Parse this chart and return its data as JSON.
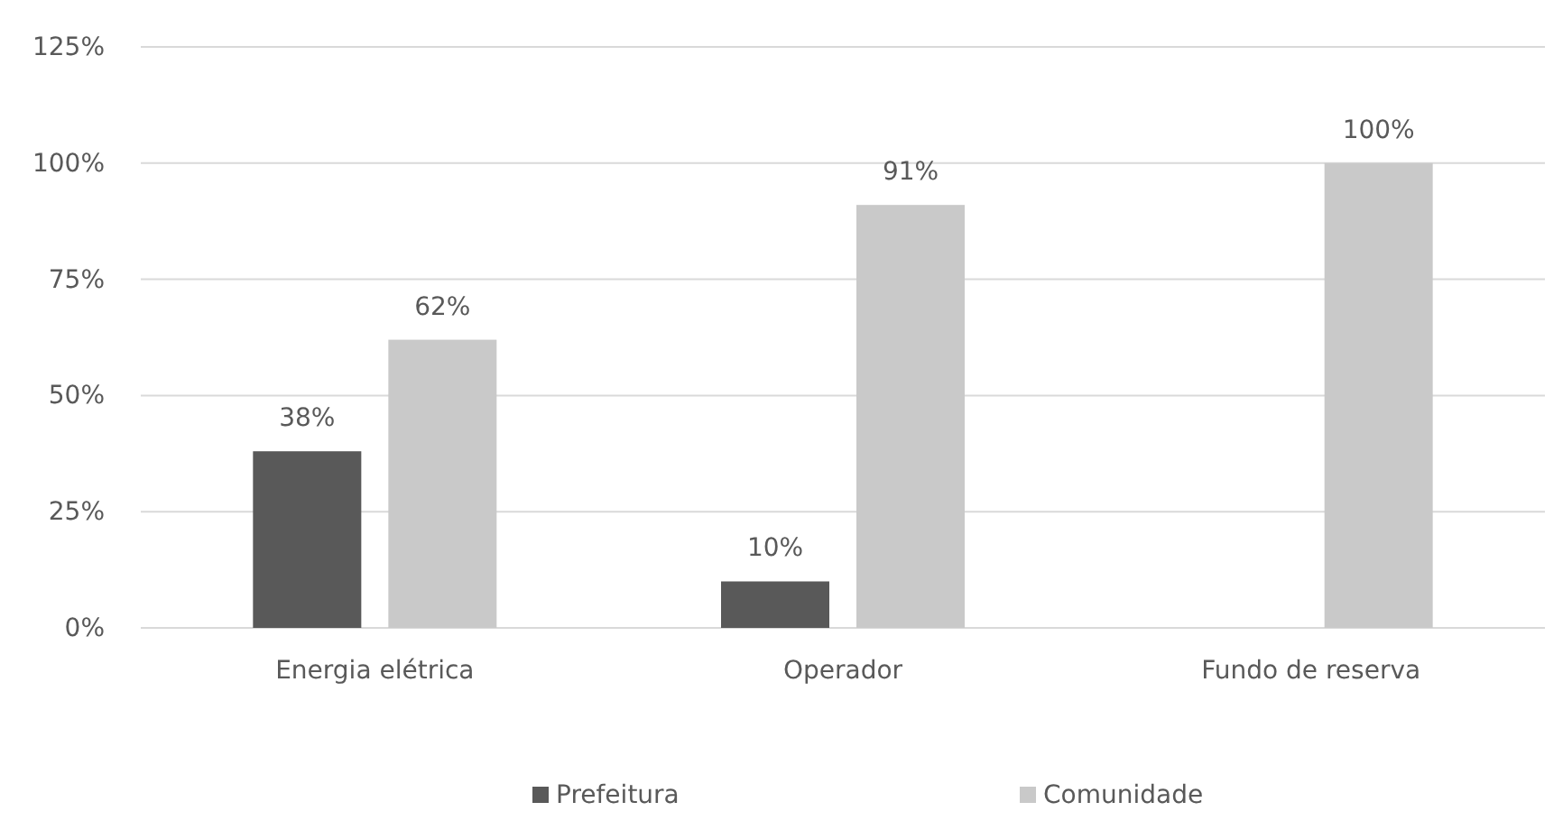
{
  "chart_data": {
    "type": "bar",
    "categories": [
      "Energia elétrica",
      "Operador",
      "Fundo de reserva"
    ],
    "series": [
      {
        "name": "Prefeitura",
        "color": "#595959",
        "values": [
          38,
          10,
          null
        ],
        "value_labels": [
          "38%",
          "10%",
          null
        ]
      },
      {
        "name": "Comunidade",
        "color": "#c9c9c9",
        "values": [
          62,
          91,
          100
        ],
        "value_labels": [
          "62%",
          "91%",
          "100%"
        ]
      }
    ],
    "ylim": [
      0,
      125
    ],
    "yticks": [
      {
        "value": 0,
        "label": "0%"
      },
      {
        "value": 25,
        "label": "25%"
      },
      {
        "value": 50,
        "label": "50%"
      },
      {
        "value": 75,
        "label": "75%"
      },
      {
        "value": 100,
        "label": "100%"
      },
      {
        "value": 125,
        "label": "125%"
      }
    ],
    "grid": "y",
    "legend": "bottom"
  }
}
